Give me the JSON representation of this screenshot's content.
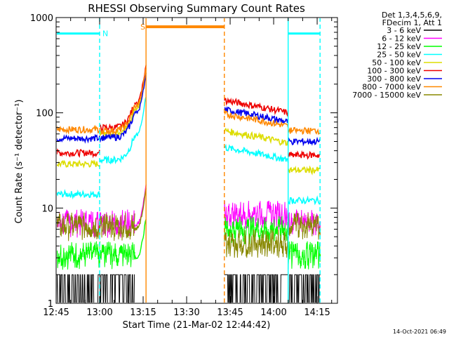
{
  "chart_data": {
    "type": "line",
    "title": "RHESSI Observing Summary Count Rates",
    "xlabel": "Start Time (21-Mar-02 12:44:42)",
    "ylabel": "Count Rate (s⁻¹ detector⁻¹)",
    "yscale": "log",
    "ylim": [
      1,
      1000
    ],
    "xlim": [
      "12:45",
      "14:22"
    ],
    "x_tick_labels": [
      "12:45",
      "13:00",
      "13:15",
      "13:30",
      "13:45",
      "14:00",
      "14:15"
    ],
    "y_tick_labels": [
      "1",
      "10",
      "100",
      "1000"
    ],
    "legend_header": [
      "Det 1,3,4,5,6,9,",
      "FDecim 1, Att 1"
    ],
    "legend_placement": "right",
    "series": [
      {
        "name": "3 - 6 keV",
        "color": "#000000"
      },
      {
        "name": "6 - 12 keV",
        "color": "#ff00ff"
      },
      {
        "name": "12 - 25 keV",
        "color": "#00ff00"
      },
      {
        "name": "25 - 50 keV",
        "color": "#00ffff"
      },
      {
        "name": "50 - 100 keV",
        "color": "#dddd00"
      },
      {
        "name": "100 - 300 keV",
        "color": "#ee0000"
      },
      {
        "name": "300 - 800 keV",
        "color": "#0000ee"
      },
      {
        "name": "800 - 7000 keV",
        "color": "#ff8800"
      },
      {
        "name": "7000 - 15000 keV",
        "color": "#888800"
      }
    ],
    "segments": [
      {
        "start": "12:45",
        "end": "13:00",
        "levels": [
          1.5,
          6.5,
          3.0,
          14,
          29,
          38,
          54,
          67,
          6.0
        ]
      },
      {
        "start": "13:00",
        "end": "13:12",
        "levels": [
          1.5,
          6.5,
          3.0,
          32,
          60,
          70,
          55,
          65,
          6.0
        ]
      },
      {
        "start": "13:43",
        "end": "14:05",
        "levels": [
          1.5,
          8.0,
          5.5,
          32,
          48,
          100,
          80,
          72,
          4.0
        ]
      },
      {
        "start": "14:05",
        "end": "14:16",
        "levels": [
          1.5,
          6.5,
          3.0,
          12,
          25,
          36,
          50,
          65,
          6.0
        ]
      }
    ],
    "annotations": [
      {
        "label": "N",
        "color": "#00ffff",
        "span": [
          "12:45",
          "13:00"
        ],
        "level": 680
      },
      {
        "label": "S",
        "color": "#ff8800",
        "span": [
          "13:16",
          "13:43"
        ],
        "level": 800
      },
      {
        "label": "",
        "color": "#00ffff",
        "span": [
          "14:05",
          "14:16"
        ],
        "level": 680
      }
    ],
    "vertical_markers": [
      {
        "time": "13:00",
        "color": "#00ffff",
        "style": "dashed"
      },
      {
        "time": "13:16",
        "color": "#ff8800",
        "style": "solid"
      },
      {
        "time": "13:43",
        "color": "#ff8800",
        "style": "dashed"
      },
      {
        "time": "14:05",
        "color": "#00ffff",
        "style": "solid"
      },
      {
        "time": "14:16",
        "color": "#00ffff",
        "style": "dashed"
      }
    ],
    "footer_timestamp": "14-Oct-2021 06:49"
  }
}
